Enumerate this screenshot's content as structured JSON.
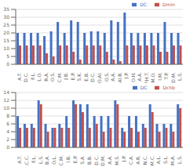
{
  "chart_data": [
    {
      "type": "bar",
      "categories": [
        "A.T.",
        "D.C.",
        "F.L.",
        "L.O.",
        "R.A.",
        "O.S.",
        "C.M.",
        "J.B.",
        "E.P.",
        "S.K.",
        "E.B.",
        "D.C.",
        "O.Al.",
        "O.S.",
        "A.A.",
        "Al.R.",
        "J.P.",
        "O.H.",
        "A.A.",
        "P.H.T.",
        "M.O.",
        "I.M.",
        "T.P.",
        "D.M.",
        "L.S."
      ],
      "series": [
        {
          "name": "DC",
          "color": "#4472C4",
          "values": [
            20,
            20,
            20,
            20,
            18,
            21,
            27,
            20,
            28,
            27,
            20,
            21,
            21,
            20,
            28,
            27,
            33,
            20,
            20,
            20,
            20,
            20,
            27,
            20,
            20
          ]
        },
        {
          "name": "Dmin",
          "color": "#C0504D",
          "values": [
            12,
            12,
            12,
            12,
            7,
            5,
            12,
            12,
            8,
            3,
            12,
            12,
            12,
            8,
            3,
            2,
            12,
            12,
            12,
            12,
            12,
            8,
            8,
            12,
            12
          ]
        }
      ],
      "ylim": [
        0,
        35
      ],
      "yticks": [
        0,
        5,
        10,
        15,
        20,
        25,
        30,
        35
      ],
      "grid": true,
      "legend": "upper right"
    },
    {
      "type": "bar",
      "categories": [
        "A.T.",
        "O.C.C.",
        "F.L.",
        "L.S.",
        "B.A.",
        "O.L.",
        "C.M.",
        "I.B.",
        "E.P.",
        "S.A.",
        "B.B.",
        "D.C.",
        "D.M.",
        "A.A.",
        "M.S.",
        "J.P.",
        "C.A.",
        "A.R.",
        "N.C.",
        "M.C.",
        "A.L.",
        "S.L.",
        "M.A.",
        "L.S."
      ],
      "series": [
        {
          "name": "DC",
          "color": "#4472C4",
          "values": [
            8,
            6,
            6,
            12,
            6,
            5,
            6,
            8,
            12,
            11,
            11,
            8,
            8,
            8,
            12,
            5,
            8,
            8,
            6,
            11,
            6,
            6,
            6,
            11
          ]
        },
        {
          "name": "Dchb",
          "color": "#C0504D",
          "values": [
            5,
            5,
            5,
            11,
            4,
            5,
            5,
            5,
            11,
            9,
            5,
            6,
            4,
            5,
            11,
            4,
            5,
            4,
            5,
            9,
            4,
            5,
            4,
            10
          ]
        }
      ],
      "ylim": [
        0,
        14
      ],
      "yticks": [
        0,
        2,
        4,
        6,
        8,
        10,
        12,
        14
      ],
      "grid": true,
      "legend": "upper right"
    }
  ]
}
